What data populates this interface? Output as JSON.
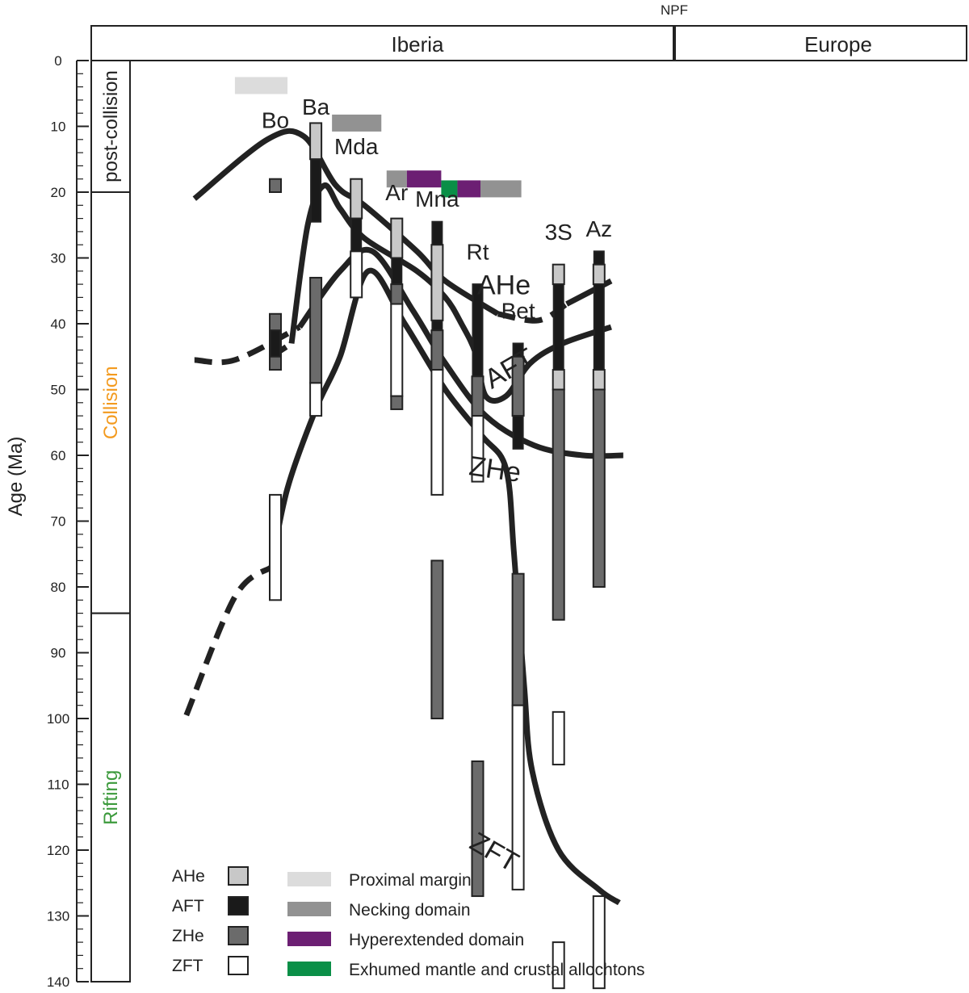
{
  "chart_data": {
    "type": "range",
    "ylabel": "Age (Ma)",
    "ylim": [
      0,
      140
    ],
    "yticks": [
      0,
      10,
      20,
      30,
      40,
      50,
      60,
      70,
      80,
      90,
      100,
      110,
      120,
      130,
      140
    ],
    "grid": false,
    "header": {
      "fault_label": "NPF",
      "regions": [
        "Iberia",
        "Europe"
      ]
    },
    "phases": [
      {
        "label": "post-collision",
        "range": [
          0,
          20
        ],
        "color": "#222222"
      },
      {
        "label": "Collision",
        "range": [
          20,
          84
        ],
        "color": "#F39A1E"
      },
      {
        "label": "Rifting",
        "range": [
          84,
          140
        ],
        "color": "#3C9A3C"
      }
    ],
    "samples": [
      {
        "name": "Bo",
        "x": 1,
        "label_age": 9,
        "bars": [
          {
            "method": "ZHe",
            "range": [
              18,
              20
            ]
          },
          {
            "method": "ZHe",
            "range": [
              38.5,
              47
            ]
          },
          {
            "method": "AFT",
            "range": [
              41,
              45
            ]
          },
          {
            "method": "ZFT",
            "range": [
              66,
              82
            ]
          }
        ]
      },
      {
        "name": "Ba",
        "x": 2,
        "label_age": 7,
        "bars": [
          {
            "method": "AHe",
            "range": [
              9.5,
              15
            ]
          },
          {
            "method": "AFT",
            "range": [
              15,
              24.5
            ]
          },
          {
            "method": "ZHe",
            "range": [
              33,
              49
            ]
          },
          {
            "method": "ZFT",
            "range": [
              49,
              54
            ]
          }
        ]
      },
      {
        "name": "Mda",
        "x": 3,
        "label_age": 13,
        "bars": [
          {
            "method": "AHe",
            "range": [
              18,
              24
            ]
          },
          {
            "method": "AFT",
            "range": [
              24,
              29
            ]
          },
          {
            "method": "ZFT",
            "range": [
              29,
              36
            ]
          }
        ]
      },
      {
        "name": "Ar",
        "x": 4,
        "label_age": 20,
        "bars": [
          {
            "method": "AHe",
            "range": [
              24,
              30
            ]
          },
          {
            "method": "AFT",
            "range": [
              30,
              34
            ]
          },
          {
            "method": "ZHe",
            "range": [
              34,
              37
            ]
          },
          {
            "method": "ZFT",
            "range": [
              37,
              51
            ]
          },
          {
            "method": "ZHe",
            "range": [
              51,
              53
            ]
          }
        ]
      },
      {
        "name": "Mna",
        "x": 5,
        "label_age": 21,
        "bars": [
          {
            "method": "AFT",
            "range": [
              24.5,
              28
            ]
          },
          {
            "method": "AHe",
            "range": [
              28,
              39.5
            ]
          },
          {
            "method": "AFT",
            "range": [
              39.5,
              41
            ]
          },
          {
            "method": "ZHe",
            "range": [
              41,
              47
            ]
          },
          {
            "method": "ZFT",
            "range": [
              47,
              66
            ]
          },
          {
            "method": "ZHe",
            "range": [
              76,
              100
            ]
          }
        ]
      },
      {
        "name": "Rt",
        "x": 6,
        "label_age": 29,
        "bars": [
          {
            "method": "AFT",
            "range": [
              34,
              48
            ]
          },
          {
            "method": "ZHe",
            "range": [
              48,
              54
            ]
          },
          {
            "method": "ZFT",
            "range": [
              54,
              64
            ]
          },
          {
            "method": "ZHe",
            "range": [
              106.5,
              127
            ]
          }
        ]
      },
      {
        "name": "Bet",
        "x": 7,
        "label_age": 38,
        "bars": [
          {
            "method": "AFT",
            "range": [
              43,
              45
            ]
          },
          {
            "method": "ZHe",
            "range": [
              45,
              54
            ]
          },
          {
            "method": "AFT",
            "range": [
              54,
              59
            ]
          },
          {
            "method": "ZHe",
            "range": [
              78,
              98
            ]
          },
          {
            "method": "ZFT",
            "range": [
              98,
              126
            ]
          }
        ]
      },
      {
        "name": "3S",
        "x": 8,
        "label_age": 26,
        "bars": [
          {
            "method": "AHe",
            "range": [
              31,
              34
            ]
          },
          {
            "method": "AFT",
            "range": [
              34,
              47
            ]
          },
          {
            "method": "AHe",
            "range": [
              47,
              50
            ]
          },
          {
            "method": "ZHe",
            "range": [
              50,
              85
            ]
          },
          {
            "method": "ZFT",
            "range": [
              99,
              107
            ]
          },
          {
            "method": "ZFT",
            "range": [
              134,
              141
            ]
          }
        ]
      },
      {
        "name": "Az",
        "x": 9,
        "label_age": 25.5,
        "bars": [
          {
            "method": "AFT",
            "range": [
              29,
              31
            ]
          },
          {
            "method": "AHe",
            "range": [
              31,
              34
            ]
          },
          {
            "method": "AFT",
            "range": [
              34,
              47
            ]
          },
          {
            "method": "AHe",
            "range": [
              47,
              50
            ]
          },
          {
            "method": "ZHe",
            "range": [
              50,
              80
            ]
          },
          {
            "method": "ZFT",
            "range": [
              127,
              141
            ]
          }
        ]
      }
    ],
    "domains": [
      {
        "domain": "Proximal margin",
        "row_age": 3.8,
        "from_x": 0.0,
        "to_x": 1.3
      },
      {
        "domain": "Necking domain",
        "row_age": 9.5,
        "from_x": 2.4,
        "to_x": 3.62
      },
      {
        "domain": "Necking domain",
        "row_age": 18,
        "from_x": 3.75,
        "to_x": 4.25
      },
      {
        "domain": "Hyperextended domain",
        "row_age": 18,
        "from_x": 4.25,
        "to_x": 5.1
      },
      {
        "domain": "Exhumed mantle and crustal allochtons",
        "row_age": 19.5,
        "from_x": 5.1,
        "to_x": 5.5
      },
      {
        "domain": "Hyperextended domain",
        "row_age": 19.5,
        "from_x": 5.5,
        "to_x": 6.07
      },
      {
        "domain": "Necking domain",
        "row_age": 19.5,
        "from_x": 6.07,
        "to_x": 7.08
      }
    ],
    "curves": [
      {
        "name": "AHe",
        "label_x": 6.65,
        "label_age": 35.5,
        "points": [
          [
            -1.0,
            21
          ],
          [
            0.8,
            12
          ],
          [
            1.7,
            11.5
          ],
          [
            2.5,
            19
          ],
          [
            3.2,
            22
          ],
          [
            4.5,
            29
          ],
          [
            5.2,
            33.5
          ],
          [
            6.5,
            38.5
          ],
          [
            7.5,
            39.5
          ],
          [
            8.2,
            37
          ],
          [
            9.3,
            33.5
          ]
        ],
        "dashed_x_range": [
          5.4,
          7.6
        ]
      },
      {
        "name": "AFT",
        "label_x": 6.9,
        "label_age": 48,
        "points": [
          [
            0.9,
            45
          ],
          [
            1.4,
            43
          ],
          [
            1.8,
            25
          ],
          [
            2.2,
            19
          ],
          [
            2.6,
            22.5
          ],
          [
            3.2,
            27
          ],
          [
            4.5,
            32
          ],
          [
            5.2,
            36
          ],
          [
            5.6,
            40
          ],
          [
            5.95,
            44.5
          ],
          [
            6.2,
            51
          ],
          [
            6.7,
            51
          ],
          [
            7.3,
            46
          ],
          [
            8.1,
            43
          ],
          [
            9.3,
            40.5
          ]
        ],
        "dashed_x_range": [
          0.9,
          1.35
        ]
      },
      {
        "name": "ZHe",
        "label_x": 6.4,
        "label_age": 63.5,
        "points": [
          [
            -1.0,
            45.5
          ],
          [
            0.0,
            45.5
          ],
          [
            1.6,
            40.5
          ],
          [
            2.6,
            32
          ],
          [
            3.4,
            29
          ],
          [
            4.4,
            38
          ],
          [
            5.2,
            46
          ],
          [
            6.2,
            54
          ],
          [
            7.4,
            58.5
          ],
          [
            8.6,
            60
          ],
          [
            9.6,
            60
          ]
        ],
        "dashed_x_range": [
          -1.0,
          0.35
        ]
      },
      {
        "name": "ZFT",
        "label_x": 6.3,
        "label_age": 121.5,
        "points": [
          [
            -1.2,
            99.5
          ],
          [
            0.0,
            81.5
          ],
          [
            0.9,
            77
          ],
          [
            1.3,
            65
          ],
          [
            2.0,
            53
          ],
          [
            2.6,
            45
          ],
          [
            3.3,
            32
          ],
          [
            4.2,
            40
          ],
          [
            5.2,
            50
          ],
          [
            6.1,
            57
          ],
          [
            6.7,
            62
          ],
          [
            6.9,
            75
          ],
          [
            7.15,
            95
          ],
          [
            7.35,
            108
          ],
          [
            8.0,
            120
          ],
          [
            9.0,
            126
          ],
          [
            9.5,
            128
          ]
        ],
        "dashed_x_range": [
          -1.2,
          0.75
        ]
      }
    ],
    "legend_methods": [
      {
        "label": "AHe",
        "fill": "#C8C8C8"
      },
      {
        "label": "AFT",
        "fill": "#1A1A1A"
      },
      {
        "label": "ZHe",
        "fill": "#6B6B6B"
      },
      {
        "label": "ZFT",
        "fill": "#FFFFFF"
      }
    ],
    "legend_domains": [
      {
        "label": "Proximal margin",
        "color": "#DCDCDC"
      },
      {
        "label": "Necking domain",
        "color": "#929292"
      },
      {
        "label": "Hyperextended domain",
        "color": "#6C1F73"
      },
      {
        "label": "Exhumed mantle and crustal allochtons",
        "color": "#0A8F47"
      }
    ]
  }
}
